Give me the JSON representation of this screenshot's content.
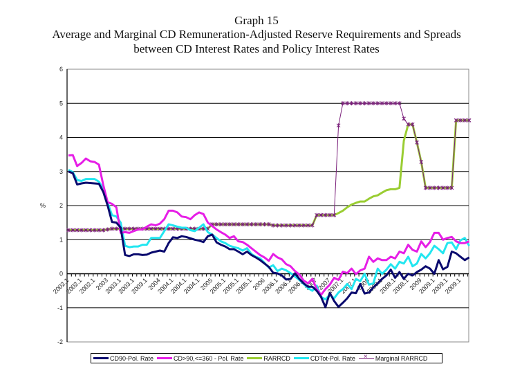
{
  "chart_data": {
    "type": "line",
    "title": "Graph 15",
    "subtitle": [
      "Average and Marginal CD Remuneration-Adjusted Reserve Requirements and Spreads",
      "between CD Interest Rates and Policy Interest Rates"
    ],
    "xlabel": "",
    "ylabel": "%",
    "ylim": [
      -2,
      6
    ],
    "yticks": [
      -2,
      -1,
      0,
      1,
      2,
      3,
      4,
      5,
      6
    ],
    "grid": true,
    "legend_position": "bottom",
    "x_tick_labels": [
      "2002.1",
      "2002.1",
      "2002.1",
      "2003",
      "2003.1",
      "2003.1",
      "2003.1",
      "2004",
      "2004.1",
      "2004.1",
      "2004.1",
      "2005",
      "2005.1",
      "2005.1",
      "2005.1",
      "2006",
      "2006.1",
      "2006.1",
      "2006.1",
      "2007",
      "2007",
      "2007.1",
      "2007.1",
      "2008",
      "2008.1",
      "2008.1",
      "2008.1",
      "2009",
      "2009.1",
      "2009.1",
      "2009.1"
    ],
    "series": [
      {
        "name": "CD90-Pol. Rate",
        "color": "#0a0a6e",
        "width": 3,
        "marker": false,
        "values": [
          3.0,
          2.95,
          2.62,
          2.65,
          2.67,
          2.66,
          2.65,
          2.64,
          2.4,
          2.0,
          1.52,
          1.5,
          1.35,
          0.55,
          0.52,
          0.57,
          0.57,
          0.55,
          0.56,
          0.62,
          0.65,
          0.68,
          0.65,
          0.9,
          1.07,
          1.05,
          1.1,
          1.08,
          1.04,
          1.0,
          0.97,
          0.93,
          1.1,
          1.15,
          0.92,
          0.85,
          0.8,
          0.72,
          0.72,
          0.65,
          0.57,
          0.65,
          0.55,
          0.48,
          0.4,
          0.3,
          0.2,
          0.03,
          0.01,
          -0.05,
          -0.17,
          -0.15,
          0.01,
          -0.15,
          -0.28,
          -0.38,
          -0.38,
          -0.5,
          -0.68,
          -0.98,
          -0.56,
          -0.8,
          -0.97,
          -0.85,
          -0.72,
          -0.55,
          -0.57,
          -0.3,
          -0.58,
          -0.55,
          -0.4,
          -0.28,
          -0.15,
          -0.05,
          0.12,
          -0.12,
          0.05,
          -0.15,
          0.0,
          -0.05,
          0.05,
          0.12,
          0.22,
          0.15,
          0.0,
          0.4,
          0.13,
          0.2,
          0.65,
          0.6,
          0.5,
          0.4,
          0.48
        ]
      },
      {
        "name": "CD>90,<=360 - Pol. Rate",
        "color": "#e61ee6",
        "width": 3,
        "marker": false,
        "values": [
          3.47,
          3.48,
          3.16,
          3.25,
          3.38,
          3.3,
          3.28,
          3.2,
          2.6,
          2.1,
          2.05,
          1.95,
          1.2,
          1.22,
          1.2,
          1.25,
          1.3,
          1.3,
          1.38,
          1.45,
          1.42,
          1.47,
          1.6,
          1.85,
          1.85,
          1.8,
          1.68,
          1.66,
          1.6,
          1.72,
          1.8,
          1.75,
          1.5,
          1.4,
          1.3,
          1.22,
          1.15,
          1.05,
          1.1,
          0.95,
          0.93,
          0.85,
          0.75,
          0.65,
          0.55,
          0.48,
          0.38,
          0.58,
          0.48,
          0.42,
          0.28,
          0.22,
          0.08,
          -0.02,
          -0.2,
          -0.28,
          -0.15,
          -0.45,
          -0.62,
          -0.45,
          -0.32,
          -0.12,
          -0.18,
          0.06,
          0.02,
          0.15,
          -0.01,
          0.1,
          0.15,
          0.5,
          0.35,
          0.45,
          0.4,
          0.4,
          0.5,
          0.45,
          0.65,
          0.6,
          0.85,
          0.7,
          0.65,
          0.95,
          0.78,
          0.93,
          1.2,
          1.2,
          1.0,
          1.05,
          1.08,
          0.95,
          0.9,
          0.9,
          0.95
        ]
      },
      {
        "name": "RARRCD",
        "color": "#9acd32",
        "width": 3,
        "marker": false,
        "values": [
          1.28,
          1.28,
          1.28,
          1.28,
          1.28,
          1.28,
          1.28,
          1.28,
          1.28,
          1.3,
          1.32,
          1.32,
          1.32,
          1.32,
          1.32,
          1.32,
          1.32,
          1.32,
          1.32,
          1.32,
          1.32,
          1.32,
          1.32,
          1.32,
          1.32,
          1.32,
          1.32,
          1.32,
          1.32,
          1.32,
          1.32,
          1.32,
          1.32,
          1.45,
          1.45,
          1.45,
          1.45,
          1.45,
          1.45,
          1.45,
          1.45,
          1.45,
          1.45,
          1.45,
          1.45,
          1.45,
          1.45,
          1.42,
          1.42,
          1.42,
          1.42,
          1.42,
          1.42,
          1.42,
          1.42,
          1.42,
          1.42,
          1.72,
          1.72,
          1.72,
          1.72,
          1.72,
          1.78,
          1.85,
          1.95,
          2.03,
          2.08,
          2.12,
          2.12,
          2.2,
          2.27,
          2.3,
          2.38,
          2.45,
          2.48,
          2.48,
          2.52,
          3.9,
          4.38,
          4.38,
          3.85,
          3.28,
          2.52,
          2.52,
          2.52,
          2.52,
          2.52,
          2.52,
          2.52,
          4.5,
          4.5,
          4.5,
          4.5
        ]
      },
      {
        "name": "CDTot-Pol. Rate",
        "color": "#22e6f0",
        "width": 3,
        "marker": false,
        "values": [
          3.05,
          2.98,
          2.75,
          2.72,
          2.78,
          2.78,
          2.78,
          2.7,
          2.5,
          2.08,
          1.72,
          1.68,
          1.5,
          0.82,
          0.78,
          0.8,
          0.8,
          0.85,
          0.85,
          1.05,
          1.05,
          1.05,
          1.25,
          1.45,
          1.42,
          1.38,
          1.35,
          1.35,
          1.28,
          1.25,
          1.35,
          1.45,
          1.22,
          1.15,
          1.05,
          0.95,
          0.9,
          0.82,
          0.78,
          0.75,
          0.68,
          0.75,
          0.58,
          0.5,
          0.45,
          0.32,
          0.18,
          0.25,
          0.08,
          0.15,
          0.1,
          0.02,
          -0.08,
          -0.18,
          -0.3,
          -0.42,
          -0.5,
          -0.35,
          -0.68,
          -0.75,
          -0.62,
          -0.72,
          -0.55,
          -0.45,
          -0.3,
          -0.45,
          -0.15,
          -0.22,
          0.0,
          -0.32,
          -0.28,
          0.15,
          0.0,
          0.12,
          0.28,
          0.15,
          0.35,
          0.3,
          0.5,
          0.22,
          0.3,
          0.58,
          0.45,
          0.6,
          0.82,
          0.72,
          0.6,
          0.9,
          0.92,
          0.72,
          0.98,
          1.05,
          0.82
        ]
      },
      {
        "name": "Marginal RARRCD",
        "color": "#7a1f7a",
        "width": 1,
        "marker": true,
        "values": [
          1.28,
          1.28,
          1.28,
          1.28,
          1.28,
          1.28,
          1.28,
          1.28,
          1.28,
          1.3,
          1.32,
          1.32,
          1.32,
          1.32,
          1.32,
          1.32,
          1.32,
          1.32,
          1.32,
          1.32,
          1.32,
          1.32,
          1.32,
          1.32,
          1.32,
          1.32,
          1.32,
          1.32,
          1.32,
          1.32,
          1.32,
          1.32,
          1.32,
          1.45,
          1.45,
          1.45,
          1.45,
          1.45,
          1.45,
          1.45,
          1.45,
          1.45,
          1.45,
          1.45,
          1.45,
          1.45,
          1.45,
          1.42,
          1.42,
          1.42,
          1.42,
          1.42,
          1.42,
          1.42,
          1.42,
          1.42,
          1.42,
          1.72,
          1.72,
          1.72,
          1.72,
          1.72,
          4.35,
          5.0,
          5.0,
          5.0,
          5.0,
          5.0,
          5.0,
          5.0,
          5.0,
          5.0,
          5.0,
          5.0,
          5.0,
          5.0,
          5.0,
          4.55,
          4.38,
          4.38,
          3.85,
          3.28,
          2.52,
          2.52,
          2.52,
          2.52,
          2.52,
          2.52,
          2.52,
          4.5,
          4.5,
          4.5,
          4.5
        ]
      }
    ]
  }
}
